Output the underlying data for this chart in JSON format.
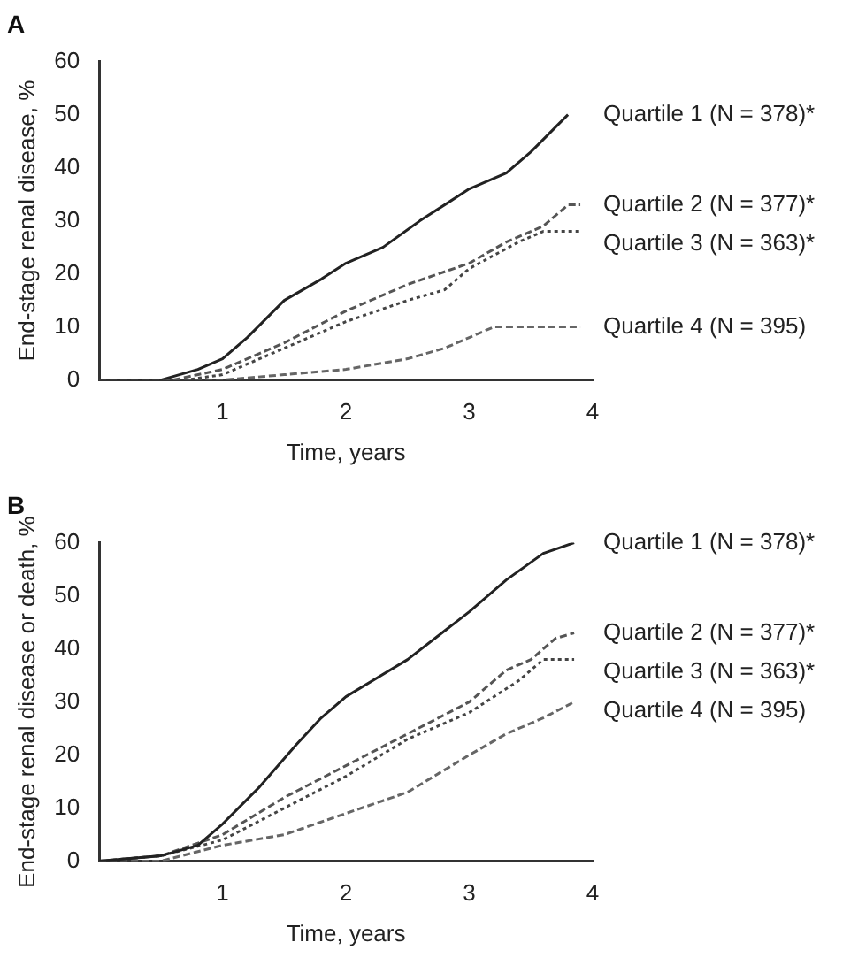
{
  "chart_data": [
    {
      "type": "line",
      "title": "A",
      "xlabel": "Time, years",
      "ylabel": "End-stage renal disease, %",
      "xlim": [
        0,
        4
      ],
      "xticks": [
        1,
        2,
        3,
        4
      ],
      "ylim": [
        0,
        60
      ],
      "yticks": [
        0,
        10,
        20,
        30,
        40,
        50,
        60
      ],
      "grid": false,
      "legend": false,
      "marker": "none",
      "series": [
        {
          "name": "Quartile 1 (N = 378)*",
          "color": "#222222",
          "line_style": "solid",
          "x": [
            0,
            0.5,
            0.8,
            1,
            1.2,
            1.5,
            1.8,
            2,
            2.3,
            2.6,
            3,
            3.3,
            3.5,
            3.8
          ],
          "values": [
            0,
            0,
            2,
            4,
            8,
            15,
            19,
            22,
            25,
            30,
            36,
            39,
            43,
            50
          ]
        },
        {
          "name": "Quartile 2 (N = 377)*",
          "color": "#555555",
          "line_style": "dashed",
          "x": [
            0,
            0.6,
            1,
            1.5,
            2,
            2.5,
            3,
            3.3,
            3.6,
            3.8,
            3.9
          ],
          "values": [
            0,
            0,
            2,
            7,
            13,
            18,
            22,
            26,
            29,
            33,
            33
          ]
        },
        {
          "name": "Quartile 3 (N = 363)*",
          "color": "#444444",
          "line_style": "dotted",
          "x": [
            0,
            0.7,
            1,
            1.5,
            2,
            2.5,
            2.8,
            3,
            3.4,
            3.6,
            3.9
          ],
          "values": [
            0,
            0,
            1,
            6,
            11,
            15,
            17,
            21,
            26,
            28,
            28
          ]
        },
        {
          "name": "Quartile 4 (N = 395)",
          "color": "#666666",
          "line_style": "dashed",
          "x": [
            0,
            1,
            1.5,
            2,
            2.5,
            2.8,
            3,
            3.2,
            3.9
          ],
          "values": [
            0,
            0,
            1,
            2,
            4,
            6,
            8,
            10,
            10
          ]
        }
      ]
    },
    {
      "type": "line",
      "title": "B",
      "xlabel": "Time, years",
      "ylabel": "End-stage renal disease or death, %",
      "xlim": [
        0,
        4
      ],
      "xticks": [
        1,
        2,
        3,
        4
      ],
      "ylim": [
        0,
        60
      ],
      "yticks": [
        0,
        10,
        20,
        30,
        40,
        50,
        60
      ],
      "grid": false,
      "legend": false,
      "marker": "none",
      "series": [
        {
          "name": "Quartile 1 (N = 378)*",
          "color": "#222222",
          "line_style": "solid",
          "x": [
            0,
            0.5,
            0.8,
            1,
            1.3,
            1.6,
            1.8,
            2,
            2.5,
            3,
            3.3,
            3.6,
            3.85
          ],
          "values": [
            0,
            1,
            3,
            7,
            14,
            22,
            27,
            31,
            38,
            47,
            53,
            58,
            60
          ]
        },
        {
          "name": "Quartile 2 (N = 377)*",
          "color": "#555555",
          "line_style": "dashed",
          "x": [
            0,
            0.5,
            1,
            1.5,
            2,
            2.5,
            3,
            3.3,
            3.5,
            3.7,
            3.85
          ],
          "values": [
            0,
            1,
            5,
            12,
            18,
            24,
            30,
            36,
            38,
            42,
            43
          ]
        },
        {
          "name": "Quartile 3 (N = 363)*",
          "color": "#444444",
          "line_style": "dotted",
          "x": [
            0,
            0.5,
            1,
            1.5,
            2,
            2.5,
            3,
            3.4,
            3.6,
            3.85
          ],
          "values": [
            0,
            1,
            4,
            10,
            16,
            23,
            28,
            34,
            38,
            38
          ]
        },
        {
          "name": "Quartile 4 (N = 395)",
          "color": "#666666",
          "line_style": "dashed",
          "x": [
            0,
            0.5,
            1,
            1.5,
            2,
            2.5,
            3,
            3.3,
            3.6,
            3.85
          ],
          "values": [
            0,
            0,
            3,
            5,
            9,
            13,
            20,
            24,
            27,
            30
          ]
        }
      ]
    }
  ]
}
